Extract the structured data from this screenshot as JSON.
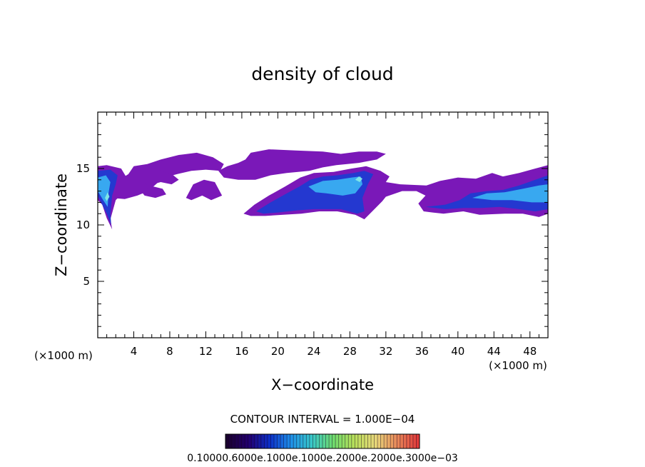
{
  "chart_data": {
    "type": "heatmap",
    "title": "density of cloud",
    "xlabel": "X−coordinate",
    "ylabel": "Z−coordinate",
    "x_unit_label": "(×1000 m)",
    "y_unit_label": "(×1000 m)",
    "xlim": [
      0,
      50
    ],
    "ylim": [
      0,
      20
    ],
    "x_ticks": [
      "4",
      "8",
      "12",
      "16",
      "20",
      "24",
      "28",
      "32",
      "36",
      "40",
      "44",
      "48"
    ],
    "y_ticks": [
      "5",
      "10",
      "15"
    ],
    "contour_interval_text": "CONTOUR INTERVAL = 1.000E−04",
    "colorbar_labels_text": "0.10000.6000e.1000e.1000e.2000e.2000e.3000e−03",
    "colorbar_range": [
      0.0001,
      0.003
    ],
    "colorbar_colors": [
      "#1a0030",
      "#22006e",
      "#0c2fc8",
      "#1e8fe8",
      "#39c8c8",
      "#6edb6e",
      "#b8e05a",
      "#e8d87a",
      "#e88a5a",
      "#e03a3a"
    ],
    "fill_colors": {
      "low": "#7a18b8",
      "mid": "#2438d0",
      "high": "#38a8f0",
      "peak": "#7fe6e6"
    },
    "regions": [
      {
        "level": "low",
        "points": [
          [
            0,
            12.2
          ],
          [
            0,
            15.2
          ],
          [
            1,
            15.3
          ],
          [
            2.6,
            15.0
          ],
          [
            3.2,
            14.2
          ],
          [
            3.0,
            13.0
          ],
          [
            2.0,
            12.2
          ],
          [
            1.4,
            10.5
          ],
          [
            1.6,
            9.6
          ],
          [
            1.0,
            10.6
          ],
          [
            0.5,
            11.8
          ]
        ]
      },
      {
        "level": "low",
        "points": [
          [
            1.5,
            12.4
          ],
          [
            1.7,
            13.5
          ],
          [
            2.4,
            14.0
          ],
          [
            3.4,
            14.5
          ],
          [
            4.0,
            15.2
          ],
          [
            5.5,
            15.4
          ],
          [
            7.0,
            15.8
          ],
          [
            9.0,
            16.2
          ],
          [
            11.0,
            16.4
          ],
          [
            12.8,
            16.0
          ],
          [
            14.0,
            15.4
          ],
          [
            13.6,
            14.8
          ],
          [
            12.0,
            14.9
          ],
          [
            10.4,
            14.8
          ],
          [
            8.8,
            14.5
          ],
          [
            7.4,
            14.2
          ],
          [
            6.6,
            13.7
          ],
          [
            5.6,
            13.0
          ],
          [
            4.4,
            12.6
          ],
          [
            3.0,
            12.3
          ]
        ]
      },
      {
        "level": "low",
        "points": [
          [
            4.4,
            14.0
          ],
          [
            5.2,
            15.2
          ],
          [
            6.6,
            15.0
          ],
          [
            7.6,
            14.6
          ],
          [
            8.4,
            14.4
          ],
          [
            9.0,
            14.0
          ],
          [
            8.2,
            13.6
          ],
          [
            7.0,
            13.8
          ],
          [
            5.6,
            13.5
          ]
        ]
      },
      {
        "level": "low",
        "points": [
          [
            4.8,
            13.0
          ],
          [
            6.2,
            13.4
          ],
          [
            7.2,
            13.2
          ],
          [
            7.6,
            12.7
          ],
          [
            6.4,
            12.4
          ],
          [
            5.2,
            12.6
          ]
        ]
      },
      {
        "level": "low",
        "points": [
          [
            9.8,
            12.4
          ],
          [
            10.6,
            13.6
          ],
          [
            11.8,
            14.0
          ],
          [
            13.0,
            13.8
          ],
          [
            13.4,
            13.2
          ],
          [
            13.8,
            12.6
          ],
          [
            12.6,
            12.2
          ],
          [
            11.6,
            12.6
          ],
          [
            10.4,
            12.2
          ]
        ]
      },
      {
        "level": "low",
        "points": [
          [
            13.4,
            14.8
          ],
          [
            14.4,
            15.2
          ],
          [
            15.6,
            15.5
          ],
          [
            16.4,
            15.8
          ],
          [
            17.0,
            16.4
          ],
          [
            19.0,
            16.7
          ],
          [
            22.0,
            16.6
          ],
          [
            25.0,
            16.5
          ],
          [
            27.0,
            16.3
          ],
          [
            29.0,
            16.5
          ],
          [
            31.0,
            16.5
          ],
          [
            32.0,
            16.3
          ],
          [
            31.0,
            15.8
          ],
          [
            29.0,
            15.5
          ],
          [
            26.5,
            15.3
          ],
          [
            25.0,
            15.1
          ],
          [
            23.5,
            14.8
          ],
          [
            21.0,
            14.6
          ],
          [
            19.2,
            14.4
          ],
          [
            17.5,
            14.0
          ],
          [
            15.6,
            14.0
          ],
          [
            14.0,
            14.2
          ]
        ]
      },
      {
        "level": "low",
        "points": [
          [
            16.2,
            11.0
          ],
          [
            17.4,
            11.8
          ],
          [
            19.0,
            12.6
          ],
          [
            20.8,
            13.4
          ],
          [
            22.5,
            14.2
          ],
          [
            24.0,
            14.6
          ],
          [
            26.2,
            14.7
          ],
          [
            28.2,
            15.0
          ],
          [
            29.8,
            15.2
          ],
          [
            31.4,
            14.8
          ],
          [
            32.4,
            14.3
          ],
          [
            32.0,
            13.8
          ],
          [
            33.6,
            13.6
          ],
          [
            36.5,
            13.5
          ],
          [
            38.0,
            13.9
          ],
          [
            40.0,
            14.2
          ],
          [
            42.0,
            14.1
          ],
          [
            43.8,
            14.6
          ],
          [
            45.0,
            14.3
          ],
          [
            46.8,
            14.6
          ],
          [
            48.6,
            15.0
          ],
          [
            50.0,
            15.3
          ],
          [
            50.0,
            11.0
          ],
          [
            49.0,
            10.7
          ],
          [
            47.2,
            11.0
          ],
          [
            45.2,
            11.0
          ],
          [
            42.4,
            10.9
          ],
          [
            40.6,
            11.2
          ],
          [
            38.4,
            11.0
          ],
          [
            37.2,
            11.1
          ],
          [
            36.2,
            11.2
          ],
          [
            35.6,
            11.9
          ],
          [
            36.4,
            12.6
          ],
          [
            35.4,
            13.0
          ],
          [
            33.8,
            13.0
          ],
          [
            32.0,
            12.5
          ],
          [
            31.6,
            12.1
          ],
          [
            30.6,
            11.3
          ],
          [
            29.6,
            10.5
          ],
          [
            28.6,
            10.9
          ],
          [
            26.6,
            11.2
          ],
          [
            24.6,
            11.2
          ],
          [
            22.6,
            11.0
          ],
          [
            20.6,
            10.9
          ],
          [
            18.6,
            10.8
          ],
          [
            17.0,
            10.8
          ]
        ]
      },
      {
        "level": "mid",
        "points": [
          [
            0,
            12.6
          ],
          [
            0,
            14.8
          ],
          [
            1.4,
            14.9
          ],
          [
            2.2,
            14.4
          ],
          [
            2.0,
            13.6
          ],
          [
            1.6,
            12.6
          ],
          [
            1.4,
            11.0
          ],
          [
            1.5,
            10.0
          ],
          [
            1.0,
            11.0
          ]
        ]
      },
      {
        "level": "mid",
        "points": [
          [
            17.6,
            11.2
          ],
          [
            19.2,
            12.0
          ],
          [
            21.0,
            12.8
          ],
          [
            22.4,
            13.4
          ],
          [
            23.6,
            14.0
          ],
          [
            25.0,
            14.3
          ],
          [
            26.6,
            14.4
          ],
          [
            28.4,
            14.6
          ],
          [
            29.6,
            14.8
          ],
          [
            30.6,
            14.5
          ],
          [
            30.0,
            13.6
          ],
          [
            29.4,
            12.4
          ],
          [
            29.6,
            11.2
          ],
          [
            28.8,
            11.0
          ],
          [
            27.0,
            11.4
          ],
          [
            25.6,
            11.4
          ],
          [
            24.0,
            11.4
          ],
          [
            22.2,
            11.3
          ],
          [
            20.0,
            11.1
          ],
          [
            18.4,
            11.0
          ]
        ]
      },
      {
        "level": "mid",
        "points": [
          [
            36.4,
            11.6
          ],
          [
            38.6,
            11.8
          ],
          [
            40.2,
            12.2
          ],
          [
            41.4,
            12.8
          ],
          [
            43.2,
            13.0
          ],
          [
            45.0,
            13.1
          ],
          [
            46.8,
            13.5
          ],
          [
            48.6,
            14.0
          ],
          [
            50.0,
            14.4
          ],
          [
            50.0,
            11.4
          ],
          [
            48.6,
            11.2
          ],
          [
            46.8,
            11.4
          ],
          [
            44.6,
            11.6
          ],
          [
            42.6,
            11.5
          ],
          [
            40.6,
            11.5
          ],
          [
            38.6,
            11.4
          ]
        ]
      },
      {
        "level": "high",
        "points": [
          [
            0,
            13.0
          ],
          [
            0,
            14.2
          ],
          [
            0.9,
            14.4
          ],
          [
            1.4,
            13.8
          ],
          [
            1.2,
            12.8
          ],
          [
            1.1,
            11.6
          ],
          [
            0.6,
            12.2
          ]
        ]
      },
      {
        "level": "high",
        "points": [
          [
            23.4,
            13.4
          ],
          [
            25.0,
            13.9
          ],
          [
            26.6,
            14.0
          ],
          [
            28.2,
            14.2
          ],
          [
            29.2,
            14.3
          ],
          [
            29.4,
            13.6
          ],
          [
            28.6,
            12.8
          ],
          [
            27.2,
            12.6
          ],
          [
            25.4,
            12.8
          ],
          [
            24.2,
            12.9
          ]
        ]
      },
      {
        "level": "high",
        "points": [
          [
            41.6,
            12.4
          ],
          [
            43.2,
            12.8
          ],
          [
            45.2,
            12.9
          ],
          [
            47.2,
            13.2
          ],
          [
            49.0,
            13.5
          ],
          [
            50.0,
            13.6
          ],
          [
            50.0,
            12.0
          ],
          [
            48.2,
            12.0
          ],
          [
            46.0,
            12.2
          ],
          [
            43.8,
            12.2
          ]
        ]
      },
      {
        "level": "peak",
        "points": [
          [
            28.6,
            14.0
          ],
          [
            29.0,
            14.3
          ],
          [
            29.4,
            14.1
          ],
          [
            29.1,
            13.8
          ]
        ]
      },
      {
        "level": "peak",
        "points": [
          [
            0.8,
            12.4
          ],
          [
            1.1,
            12.9
          ],
          [
            1.3,
            12.5
          ],
          [
            1.0,
            12.1
          ]
        ]
      }
    ]
  }
}
